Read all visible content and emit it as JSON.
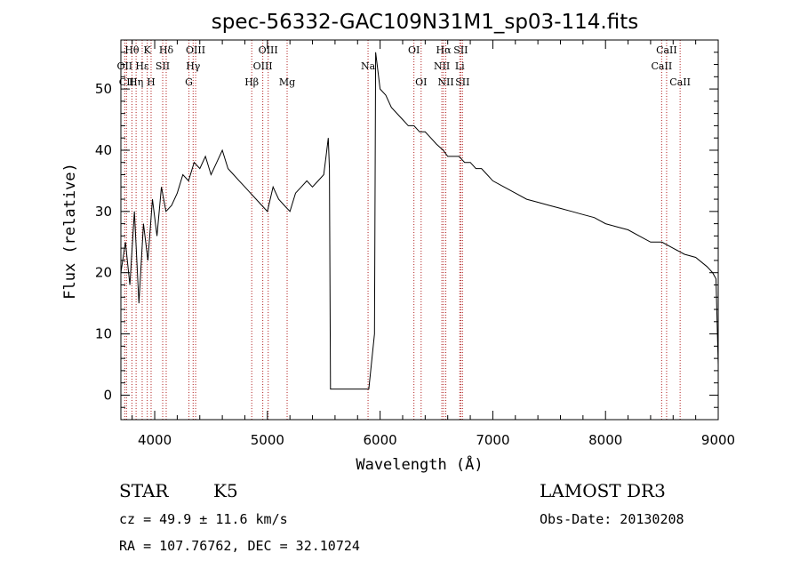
{
  "chart_data": {
    "type": "line",
    "title": "spec-56332-GAC109N31M1_sp03-114.fits",
    "xlabel": "Wavelength (Å)",
    "ylabel": "Flux (relative)",
    "xlim": [
      3700,
      9000
    ],
    "ylim": [
      -4,
      58
    ],
    "x_ticks": [
      4000,
      5000,
      6000,
      7000,
      8000,
      9000
    ],
    "y_ticks": [
      0,
      10,
      20,
      30,
      40,
      50
    ],
    "series": [
      {
        "name": "flux",
        "x": [
          3700,
          3740,
          3780,
          3820,
          3860,
          3900,
          3940,
          3980,
          4020,
          4060,
          4100,
          4150,
          4200,
          4250,
          4300,
          4350,
          4400,
          4450,
          4500,
          4550,
          4600,
          4650,
          4700,
          4750,
          4800,
          4850,
          4900,
          4950,
          5000,
          5050,
          5100,
          5150,
          5200,
          5250,
          5300,
          5350,
          5400,
          5450,
          5500,
          5520,
          5540,
          5550,
          5560,
          5600,
          5700,
          5800,
          5900,
          5950,
          5960,
          5980,
          6000,
          6050,
          6100,
          6150,
          6200,
          6250,
          6300,
          6350,
          6400,
          6450,
          6500,
          6560,
          6600,
          6650,
          6700,
          6750,
          6800,
          6850,
          6900,
          6950,
          7000,
          7100,
          7200,
          7300,
          7400,
          7500,
          7600,
          7700,
          7800,
          7900,
          8000,
          8100,
          8200,
          8300,
          8400,
          8500,
          8600,
          8700,
          8800,
          8900,
          8950,
          8980,
          9000
        ],
        "y": [
          20,
          25,
          18,
          30,
          15,
          28,
          22,
          32,
          26,
          34,
          30,
          31,
          33,
          36,
          35,
          38,
          37,
          39,
          36,
          38,
          40,
          37,
          36,
          35,
          34,
          33,
          32,
          31,
          30,
          34,
          32,
          31,
          30,
          33,
          34,
          35,
          34,
          35,
          36,
          39,
          42,
          37,
          1,
          1,
          1,
          1,
          1,
          10,
          56,
          53,
          50,
          49,
          47,
          46,
          45,
          44,
          44,
          43,
          43,
          42,
          41,
          40,
          39,
          39,
          39,
          38,
          38,
          37,
          37,
          36,
          35,
          34,
          33,
          32,
          31.5,
          31,
          30.5,
          30,
          29.5,
          29,
          28,
          27.5,
          27,
          26,
          25,
          25,
          24,
          23,
          22.5,
          21,
          20,
          19,
          5
        ]
      }
    ],
    "lines": [
      {
        "x": 3734,
        "label": "OII",
        "row": 2
      },
      {
        "x": 3750,
        "label": "CII",
        "row": 3
      },
      {
        "x": 3798,
        "label": "Hθ",
        "row": 1
      },
      {
        "x": 3835,
        "label": "Hη",
        "row": 3
      },
      {
        "x": 3889,
        "label": "Hε",
        "row": 2
      },
      {
        "x": 3934,
        "label": "K",
        "row": 1
      },
      {
        "x": 3968,
        "label": "H",
        "row": 3
      },
      {
        "x": 4071,
        "label": "SII",
        "row": 2
      },
      {
        "x": 4102,
        "label": "Hδ",
        "row": 1
      },
      {
        "x": 4304,
        "label": "G",
        "row": 3
      },
      {
        "x": 4341,
        "label": "Hγ",
        "row": 2
      },
      {
        "x": 4363,
        "label": "OIII",
        "row": 1
      },
      {
        "x": 4861,
        "label": "Hβ",
        "row": 3
      },
      {
        "x": 4959,
        "label": "OIII",
        "row": 2
      },
      {
        "x": 5007,
        "label": "OIII",
        "row": 1
      },
      {
        "x": 5175,
        "label": "Mg",
        "row": 3
      },
      {
        "x": 5893,
        "label": "Na",
        "row": 2
      },
      {
        "x": 6300,
        "label": "OI",
        "row": 1
      },
      {
        "x": 6364,
        "label": "OI",
        "row": 3
      },
      {
        "x": 6548,
        "label": "NII",
        "row": 2
      },
      {
        "x": 6563,
        "label": "Hα",
        "row": 1
      },
      {
        "x": 6583,
        "label": "NII",
        "row": 3
      },
      {
        "x": 6707,
        "label": "Li",
        "row": 2
      },
      {
        "x": 6716,
        "label": "SII",
        "row": 1
      },
      {
        "x": 6731,
        "label": "SII",
        "row": 3
      },
      {
        "x": 8498,
        "label": "CaII",
        "row": 2
      },
      {
        "x": 8542,
        "label": "CaII",
        "row": 1
      },
      {
        "x": 8662,
        "label": "CaII",
        "row": 3
      }
    ]
  },
  "info": {
    "class_label": "STAR",
    "subclass": "K5",
    "survey": "LAMOST DR3",
    "cz_line": "cz = 49.9 ± 11.6 km/s",
    "obs_date": "Obs-Date: 20130208",
    "coord_line": "RA = 107.76762, DEC =  32.10724"
  },
  "colors": {
    "axis": "#000000",
    "spectrum": "#000000",
    "line_marker": "#b22222"
  }
}
